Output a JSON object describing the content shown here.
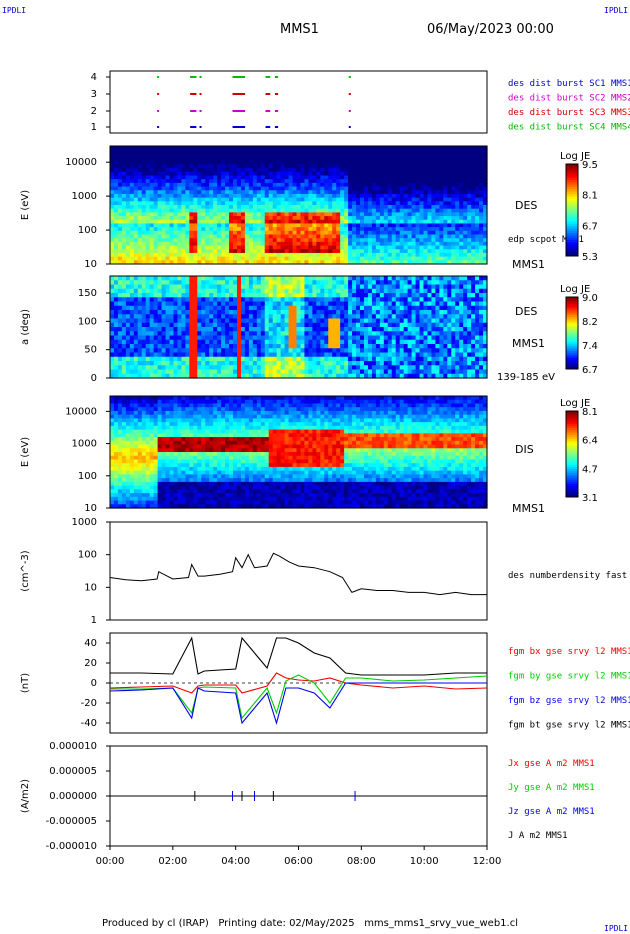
{
  "header": {
    "corner_left": "IPDLI",
    "corner_right": "IPDLI",
    "spacecraft": "MMS1",
    "datetime": "06/May/2023 00:00"
  },
  "footer": {
    "text": "Produced by cl (IRAP)   Printing date: 02/May/2025   mms_mms1_srvy_vue_web1.cl",
    "corner_right": "IPDLI"
  },
  "colors": {
    "sc1": "#0000cc",
    "sc2": "#cc00cc",
    "sc3": "#cc0000",
    "sc4": "#00bb00",
    "bx": "#ee0000",
    "by": "#00cc00",
    "bz": "#0000ee",
    "bt": "#000000"
  },
  "chart_data": [
    {
      "type": "scatter",
      "panel": "burst",
      "yticks": [
        "1",
        "2",
        "3",
        "4"
      ],
      "legend": [
        "des dist burst SC1 MMS1",
        "des dist burst SC2 MMS2",
        "des dist burst SC3 MMS3",
        "des dist burst SC4 MMS4"
      ],
      "burst_intervals_hours": [
        [
          1.5,
          1.55
        ],
        [
          2.55,
          2.75
        ],
        [
          2.85,
          2.9
        ],
        [
          3.9,
          4.3
        ],
        [
          4.95,
          5.1
        ],
        [
          5.25,
          5.35
        ],
        [
          7.6,
          7.65
        ]
      ],
      "xlim": [
        0,
        12
      ]
    },
    {
      "type": "heatmap",
      "panel": "des_energy",
      "ylabel": "E (eV)",
      "yticks": [
        "10",
        "100",
        "1000",
        "10000"
      ],
      "ylim": [
        10,
        30000
      ],
      "label": "DES",
      "label2": "MMS1",
      "overlay_label": "edp scpot MMS1",
      "colorbar": {
        "title": "Log JE",
        "ticks": [
          "9.5",
          "8.1",
          "6.7",
          "5.3"
        ],
        "range": [
          5.3,
          9.5
        ]
      }
    },
    {
      "type": "heatmap",
      "panel": "des_pitch",
      "ylabel": "a (deg)",
      "yticks": [
        "0",
        "50",
        "100",
        "150"
      ],
      "ylim": [
        0,
        180
      ],
      "label": "DES",
      "label2": "MMS1",
      "energy_range": "139-185 eV",
      "colorbar": {
        "title": "Log JE",
        "ticks": [
          "9.0",
          "8.2",
          "7.4",
          "6.7"
        ],
        "range": [
          6.7,
          9.0
        ]
      }
    },
    {
      "type": "heatmap",
      "panel": "dis_energy",
      "ylabel": "E (eV)",
      "yticks": [
        "10",
        "100",
        "1000",
        "10000"
      ],
      "ylim": [
        10,
        30000
      ],
      "label": "DIS",
      "label2": "MMS1",
      "colorbar": {
        "title": "Log JE",
        "ticks": [
          "8.1",
          "6.4",
          "4.7",
          "3.1"
        ],
        "range": [
          3.1,
          8.1
        ]
      }
    },
    {
      "type": "line",
      "panel": "density",
      "ylabel": "(cm^-3)",
      "yticks": [
        "1",
        "10",
        "100",
        "1000"
      ],
      "ylim": [
        1,
        1000
      ],
      "legend": [
        "des numberdensity fast M"
      ],
      "x": [
        0,
        0.5,
        1.0,
        1.5,
        1.55,
        2.0,
        2.5,
        2.6,
        2.8,
        3.0,
        3.5,
        3.9,
        4.0,
        4.2,
        4.4,
        4.6,
        5.0,
        5.2,
        5.4,
        5.7,
        6.0,
        6.5,
        7.0,
        7.4,
        7.7,
        8.0,
        8.5,
        9.0,
        9.5,
        10.0,
        10.5,
        11.0,
        11.5,
        12.0
      ],
      "values": [
        20,
        17,
        16,
        18,
        30,
        18,
        20,
        50,
        22,
        22,
        25,
        30,
        80,
        40,
        100,
        40,
        45,
        110,
        90,
        60,
        45,
        40,
        30,
        20,
        7,
        9,
        8,
        8,
        7,
        7,
        6,
        7,
        6,
        6
      ]
    },
    {
      "type": "line",
      "panel": "bfield",
      "ylabel": "(nT)",
      "yticks": [
        "-40",
        "-20",
        "0",
        "20",
        "40"
      ],
      "ylim": [
        -50,
        50
      ],
      "legend": [
        "fgm bx gse srvy l2 MMS1",
        "fgm by gse srvy l2 MMS1",
        "fgm bz gse srvy l2 MMS1",
        "fgm bt gse srvy l2 MMS1"
      ],
      "x": [
        0,
        1,
        2,
        2.6,
        2.8,
        3,
        4,
        4.2,
        5,
        5.3,
        5.6,
        6,
        6.5,
        7,
        7.5,
        8,
        9,
        10,
        11,
        12
      ],
      "series": [
        {
          "name": "fgm bx gse srvy l2 MMS1",
          "values": [
            -5,
            -4,
            -3,
            -10,
            -3,
            -2,
            -2,
            -10,
            -3,
            10,
            5,
            3,
            2,
            5,
            0,
            -2,
            -5,
            -3,
            -6,
            -5
          ]
        },
        {
          "name": "fgm by gse srvy l2 MMS1",
          "values": [
            -6,
            -6,
            -5,
            -30,
            -5,
            -4,
            -5,
            -35,
            -5,
            -30,
            2,
            8,
            0,
            -20,
            5,
            5,
            2,
            3,
            5,
            7
          ]
        },
        {
          "name": "fgm bz gse srvy l2 MMS1",
          "values": [
            -8,
            -7,
            -5,
            -35,
            -5,
            -8,
            -10,
            -40,
            -10,
            -40,
            -5,
            -5,
            -10,
            -25,
            0,
            0,
            0,
            0,
            0,
            0
          ]
        },
        {
          "name": "fgm bt gse srvy l2 MMS1",
          "values": [
            10,
            10,
            9,
            45,
            9,
            12,
            14,
            45,
            15,
            45,
            45,
            40,
            30,
            25,
            10,
            8,
            8,
            8,
            10,
            10
          ]
        }
      ]
    },
    {
      "type": "line",
      "panel": "current",
      "ylabel": "(A/m2)",
      "yticks": [
        "-0.000010",
        "-0.000005",
        "0.000000",
        "0.000005",
        "0.000010"
      ],
      "ylim": [
        -1e-05,
        1e-05
      ],
      "legend": [
        "Jx gse A m2 MMS1",
        "Jy gse A m2 MMS1",
        "Jz gse A m2 MMS1",
        "J A m2 MMS1"
      ],
      "spike_hours": [
        2.7,
        3.9,
        4.2,
        4.6,
        5.2,
        7.8
      ],
      "xticks": [
        "00:00",
        "02:00",
        "04:00",
        "06:00",
        "08:00",
        "10:00",
        "12:00"
      ],
      "xlim": [
        0,
        12
      ]
    }
  ]
}
